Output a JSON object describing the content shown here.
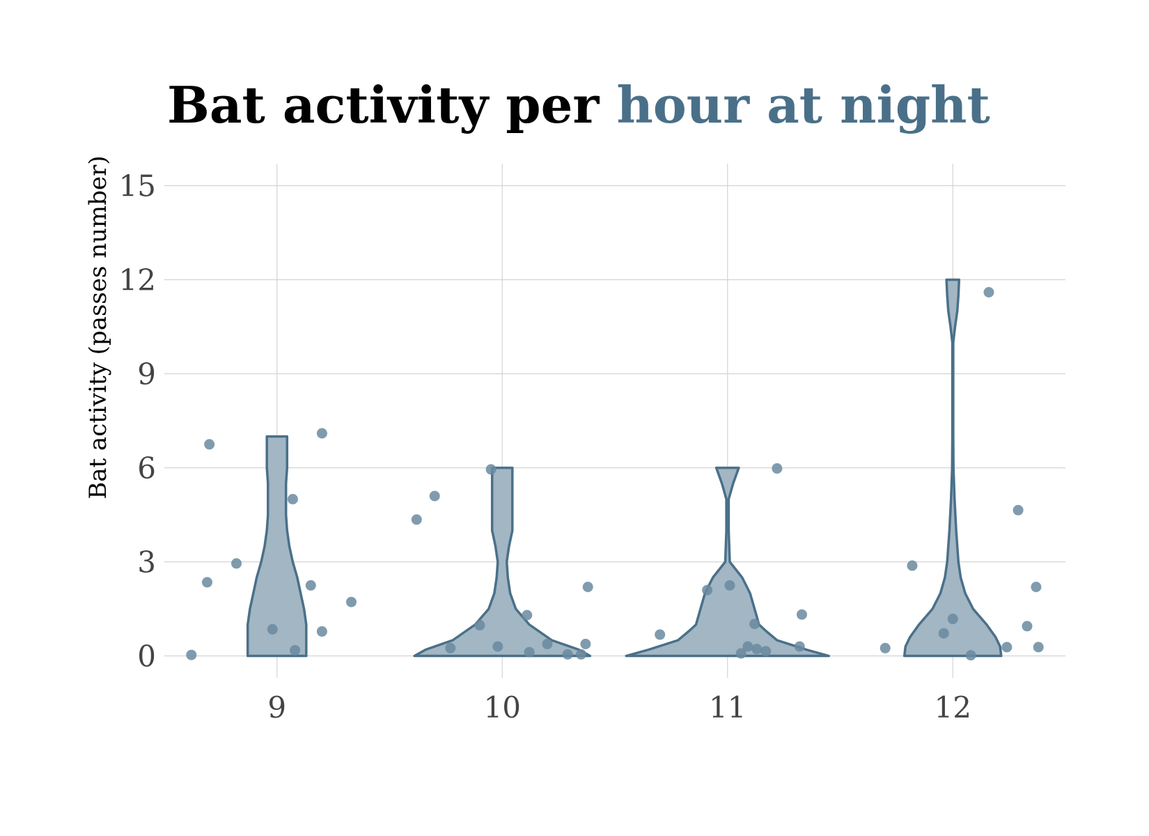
{
  "chart_data": {
    "type": "violin",
    "title_parts": [
      {
        "text": "Bat activity per ",
        "color": "#000000"
      },
      {
        "text": "hour at night",
        "color": "#4a7089"
      }
    ],
    "xlabel": "",
    "ylabel": "Bat activity (passes number)",
    "categories": [
      "9",
      "10",
      "11",
      "12"
    ],
    "ylim": [
      -0.7,
      15.7
    ],
    "yticks": [
      "0",
      "3",
      "6",
      "9",
      "12",
      "15"
    ],
    "grid": true,
    "colors": {
      "fill": "#a2b6c3",
      "outline": "#4a7089",
      "point": "#6a8aa0",
      "grid": "#d3d3d3",
      "tick_text": "#444444"
    },
    "groups": [
      {
        "category": "9",
        "points": [
          [
            -0.38,
            0.03
          ],
          [
            -0.3,
            6.75
          ],
          [
            -0.31,
            2.35
          ],
          [
            -0.18,
            2.95
          ],
          [
            -0.02,
            0.85
          ],
          [
            0.07,
            5.0
          ],
          [
            0.08,
            0.18
          ],
          [
            0.15,
            2.25
          ],
          [
            0.2,
            7.1
          ],
          [
            0.2,
            0.78
          ],
          [
            0.33,
            1.72
          ]
        ],
        "violin_profile": [
          [
            0,
            0.13
          ],
          [
            0.5,
            0.13
          ],
          [
            1,
            0.13
          ],
          [
            1.5,
            0.12
          ],
          [
            2,
            0.105
          ],
          [
            2.5,
            0.09
          ],
          [
            3,
            0.07
          ],
          [
            3.5,
            0.055
          ],
          [
            4,
            0.045
          ],
          [
            4.5,
            0.04
          ],
          [
            5,
            0.04
          ],
          [
            5.5,
            0.04
          ],
          [
            6,
            0.045
          ],
          [
            6.5,
            0.045
          ],
          [
            7,
            0.045
          ]
        ]
      },
      {
        "category": "10",
        "points": [
          [
            -0.38,
            4.35
          ],
          [
            -0.3,
            5.1
          ],
          [
            -0.23,
            0.25
          ],
          [
            -0.1,
            0.98
          ],
          [
            -0.05,
            5.95
          ],
          [
            -0.02,
            0.3
          ],
          [
            0.11,
            1.3
          ],
          [
            0.12,
            0.12
          ],
          [
            0.2,
            0.38
          ],
          [
            0.29,
            0.05
          ],
          [
            0.35,
            0.05
          ],
          [
            0.37,
            0.38
          ],
          [
            0.38,
            2.2
          ]
        ],
        "violin_profile": [
          [
            0,
            0.39
          ],
          [
            0.2,
            0.34
          ],
          [
            0.5,
            0.22
          ],
          [
            1,
            0.12
          ],
          [
            1.5,
            0.06
          ],
          [
            2,
            0.035
          ],
          [
            2.5,
            0.025
          ],
          [
            3,
            0.02
          ],
          [
            3.5,
            0.03
          ],
          [
            4,
            0.045
          ],
          [
            4.5,
            0.045
          ],
          [
            5,
            0.045
          ],
          [
            5.5,
            0.045
          ],
          [
            6,
            0.045
          ]
        ]
      },
      {
        "category": "11",
        "points": [
          [
            -0.3,
            0.68
          ],
          [
            -0.09,
            2.1
          ],
          [
            0.01,
            2.25
          ],
          [
            0.06,
            0.08
          ],
          [
            0.09,
            0.3
          ],
          [
            0.12,
            1.02
          ],
          [
            0.13,
            0.22
          ],
          [
            0.17,
            0.15
          ],
          [
            0.22,
            5.98
          ],
          [
            0.32,
            0.3
          ],
          [
            0.33,
            1.32
          ]
        ],
        "violin_profile": [
          [
            0,
            0.45
          ],
          [
            0.2,
            0.35
          ],
          [
            0.5,
            0.22
          ],
          [
            0.8,
            0.17
          ],
          [
            1,
            0.14
          ],
          [
            1.5,
            0.12
          ],
          [
            2,
            0.1
          ],
          [
            2.5,
            0.065
          ],
          [
            3,
            0.01
          ],
          [
            4,
            0.005
          ],
          [
            5,
            0.005
          ],
          [
            5.5,
            0.025
          ],
          [
            6,
            0.05
          ]
        ]
      },
      {
        "category": "12",
        "points": [
          [
            -0.3,
            0.25
          ],
          [
            -0.18,
            2.88
          ],
          [
            -0.04,
            0.72
          ],
          [
            0.0,
            1.18
          ],
          [
            0.08,
            0.02
          ],
          [
            0.16,
            11.6
          ],
          [
            0.24,
            0.28
          ],
          [
            0.29,
            4.65
          ],
          [
            0.33,
            0.95
          ],
          [
            0.37,
            2.2
          ],
          [
            0.38,
            0.28
          ]
        ],
        "violin_profile": [
          [
            0,
            0.215
          ],
          [
            0.3,
            0.21
          ],
          [
            0.6,
            0.19
          ],
          [
            1,
            0.15
          ],
          [
            1.5,
            0.09
          ],
          [
            2,
            0.055
          ],
          [
            2.5,
            0.035
          ],
          [
            3,
            0.025
          ],
          [
            4,
            0.015
          ],
          [
            5,
            0.008
          ],
          [
            6,
            0.003
          ],
          [
            7,
            0.002
          ],
          [
            8,
            0.002
          ],
          [
            9,
            0.002
          ],
          [
            10,
            0.002
          ],
          [
            10.5,
            0.01
          ],
          [
            11,
            0.02
          ],
          [
            11.5,
            0.025
          ],
          [
            12,
            0.028
          ]
        ]
      }
    ]
  }
}
